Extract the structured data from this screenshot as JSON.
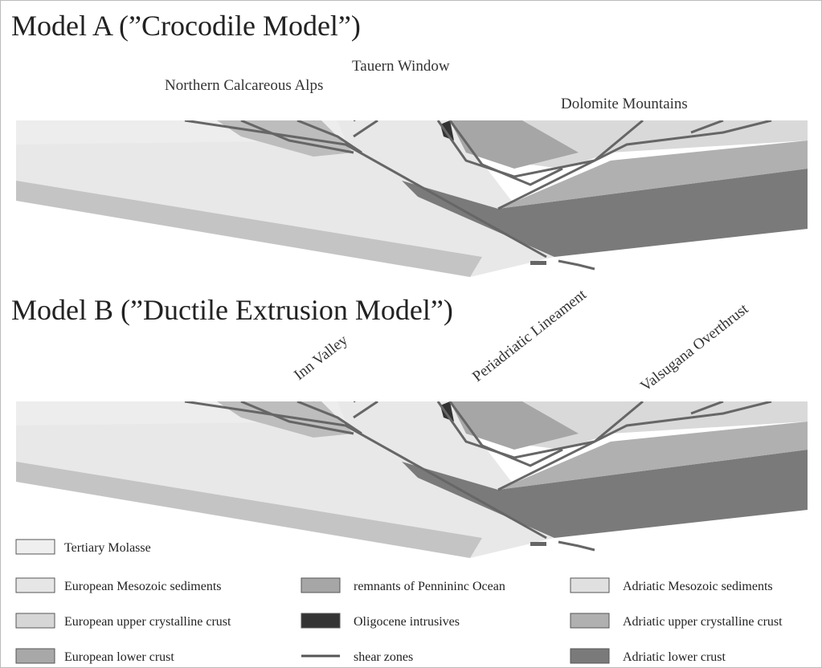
{
  "models": [
    {
      "title": "Model A (”Crocodile Model”)",
      "labels": [
        "Tauern Window",
        "Northern Calcareous Alps",
        "Dolomite Mountains"
      ]
    },
    {
      "title": "Model B (”Ductile Extrusion Model”)",
      "labels": [
        "Inn Valley",
        "Periadriatic Lineament",
        "Valsugana Overthrust"
      ]
    }
  ],
  "legend": [
    "Tertiary Molasse",
    "European Mesozoic sediments",
    "European upper crystalline crust",
    "European lower crust",
    "remnants of Pennininc Ocean",
    "Oligocene intrusives",
    "shear zones",
    "Adriatic Mesozoic sediments",
    "Adriatic upper crystalline crust",
    "Adriatic lower crust"
  ]
}
